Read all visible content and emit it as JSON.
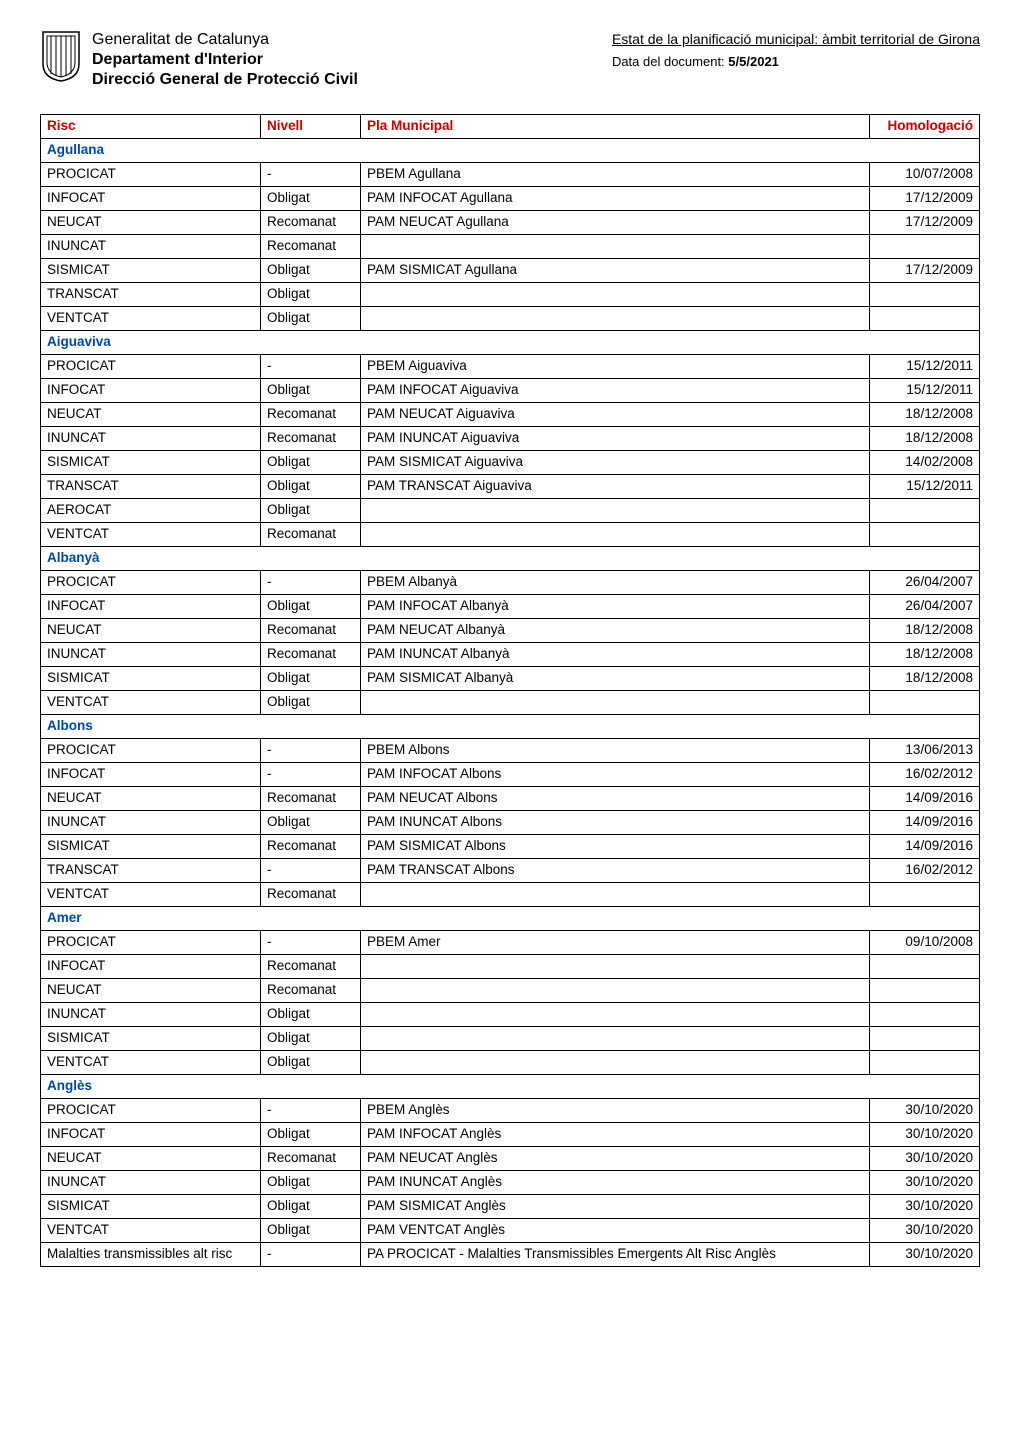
{
  "header": {
    "org_line1": "Generalitat de Catalunya",
    "org_line2": "Departament d'Interior",
    "org_line3": "Direcció General de Protecció Civil",
    "link_text": "Estat de la planificació municipal: àmbit territorial de Girona",
    "date_label": "Data del document: ",
    "date_value": "5/5/2021"
  },
  "colors": {
    "header_red": "#cc0000",
    "section_blue": "#0047ab",
    "border": "#000000",
    "background": "#ffffff",
    "text": "#000000"
  },
  "columns": [
    {
      "key": "risc",
      "label": "Risc"
    },
    {
      "key": "nivell",
      "label": "Nivell"
    },
    {
      "key": "pla",
      "label": "Pla Municipal"
    },
    {
      "key": "homolog",
      "label": "Homologació"
    }
  ],
  "sections": [
    {
      "name": "Agullana",
      "rows": [
        {
          "risc": "PROCICAT",
          "nivell": "-",
          "pla": "PBEM Agullana",
          "homolog": "10/07/2008"
        },
        {
          "risc": "INFOCAT",
          "nivell": "Obligat",
          "pla": "PAM INFOCAT Agullana",
          "homolog": "17/12/2009"
        },
        {
          "risc": "NEUCAT",
          "nivell": "Recomanat",
          "pla": "PAM NEUCAT Agullana",
          "homolog": "17/12/2009"
        },
        {
          "risc": "INUNCAT",
          "nivell": "Recomanat",
          "pla": "",
          "homolog": ""
        },
        {
          "risc": "SISMICAT",
          "nivell": "Obligat",
          "pla": "PAM SISMICAT Agullana",
          "homolog": "17/12/2009"
        },
        {
          "risc": "TRANSCAT",
          "nivell": "Obligat",
          "pla": "",
          "homolog": ""
        },
        {
          "risc": "VENTCAT",
          "nivell": "Obligat",
          "pla": "",
          "homolog": ""
        }
      ]
    },
    {
      "name": "Aiguaviva",
      "rows": [
        {
          "risc": "PROCICAT",
          "nivell": "-",
          "pla": "PBEM Aiguaviva",
          "homolog": "15/12/2011"
        },
        {
          "risc": "INFOCAT",
          "nivell": "Obligat",
          "pla": "PAM INFOCAT Aiguaviva",
          "homolog": "15/12/2011"
        },
        {
          "risc": "NEUCAT",
          "nivell": "Recomanat",
          "pla": "PAM NEUCAT Aiguaviva",
          "homolog": "18/12/2008"
        },
        {
          "risc": "INUNCAT",
          "nivell": "Recomanat",
          "pla": "PAM INUNCAT Aiguaviva",
          "homolog": "18/12/2008"
        },
        {
          "risc": "SISMICAT",
          "nivell": "Obligat",
          "pla": "PAM SISMICAT Aiguaviva",
          "homolog": "14/02/2008"
        },
        {
          "risc": "TRANSCAT",
          "nivell": "Obligat",
          "pla": "PAM TRANSCAT Aiguaviva",
          "homolog": "15/12/2011"
        },
        {
          "risc": "AEROCAT",
          "nivell": "Obligat",
          "pla": "",
          "homolog": ""
        },
        {
          "risc": "VENTCAT",
          "nivell": "Recomanat",
          "pla": "",
          "homolog": ""
        }
      ]
    },
    {
      "name": "Albanyà",
      "rows": [
        {
          "risc": "PROCICAT",
          "nivell": "-",
          "pla": "PBEM Albanyà",
          "homolog": "26/04/2007"
        },
        {
          "risc": "INFOCAT",
          "nivell": "Obligat",
          "pla": "PAM INFOCAT Albanyà",
          "homolog": "26/04/2007"
        },
        {
          "risc": "NEUCAT",
          "nivell": "Recomanat",
          "pla": "PAM NEUCAT Albanyà",
          "homolog": "18/12/2008"
        },
        {
          "risc": "INUNCAT",
          "nivell": "Recomanat",
          "pla": "PAM INUNCAT Albanyà",
          "homolog": "18/12/2008"
        },
        {
          "risc": "SISMICAT",
          "nivell": "Obligat",
          "pla": "PAM SISMICAT Albanyà",
          "homolog": "18/12/2008"
        },
        {
          "risc": "VENTCAT",
          "nivell": "Obligat",
          "pla": "",
          "homolog": ""
        }
      ]
    },
    {
      "name": "Albons",
      "rows": [
        {
          "risc": "PROCICAT",
          "nivell": "-",
          "pla": "PBEM Albons",
          "homolog": "13/06/2013"
        },
        {
          "risc": "INFOCAT",
          "nivell": "-",
          "pla": "PAM INFOCAT Albons",
          "homolog": "16/02/2012"
        },
        {
          "risc": "NEUCAT",
          "nivell": "Recomanat",
          "pla": "PAM NEUCAT Albons",
          "homolog": "14/09/2016"
        },
        {
          "risc": "INUNCAT",
          "nivell": "Obligat",
          "pla": "PAM INUNCAT Albons",
          "homolog": "14/09/2016"
        },
        {
          "risc": "SISMICAT",
          "nivell": "Recomanat",
          "pla": "PAM SISMICAT Albons",
          "homolog": "14/09/2016"
        },
        {
          "risc": "TRANSCAT",
          "nivell": "-",
          "pla": "PAM TRANSCAT Albons",
          "homolog": "16/02/2012"
        },
        {
          "risc": "VENTCAT",
          "nivell": "Recomanat",
          "pla": "",
          "homolog": ""
        }
      ]
    },
    {
      "name": "Amer",
      "rows": [
        {
          "risc": "PROCICAT",
          "nivell": "-",
          "pla": "PBEM Amer",
          "homolog": "09/10/2008"
        },
        {
          "risc": "INFOCAT",
          "nivell": "Recomanat",
          "pla": "",
          "homolog": ""
        },
        {
          "risc": "NEUCAT",
          "nivell": "Recomanat",
          "pla": "",
          "homolog": ""
        },
        {
          "risc": "INUNCAT",
          "nivell": "Obligat",
          "pla": "",
          "homolog": ""
        },
        {
          "risc": "SISMICAT",
          "nivell": "Obligat",
          "pla": "",
          "homolog": ""
        },
        {
          "risc": "VENTCAT",
          "nivell": "Obligat",
          "pla": "",
          "homolog": ""
        }
      ]
    },
    {
      "name": "Anglès",
      "rows": [
        {
          "risc": "PROCICAT",
          "nivell": "-",
          "pla": "PBEM Anglès",
          "homolog": "30/10/2020"
        },
        {
          "risc": "INFOCAT",
          "nivell": "Obligat",
          "pla": "PAM INFOCAT Anglès",
          "homolog": "30/10/2020"
        },
        {
          "risc": "NEUCAT",
          "nivell": "Recomanat",
          "pla": "PAM NEUCAT Anglès",
          "homolog": "30/10/2020"
        },
        {
          "risc": "INUNCAT",
          "nivell": "Obligat",
          "pla": "PAM INUNCAT Anglès",
          "homolog": "30/10/2020"
        },
        {
          "risc": "SISMICAT",
          "nivell": "Obligat",
          "pla": "PAM SISMICAT Anglès",
          "homolog": "30/10/2020"
        },
        {
          "risc": "VENTCAT",
          "nivell": "Obligat",
          "pla": "PAM VENTCAT Anglès",
          "homolog": "30/10/2020"
        },
        {
          "risc": "Malalties transmissibles alt risc",
          "nivell": "-",
          "pla": "PA PROCICAT - Malalties Transmissibles Emergents Alt Risc Anglès",
          "homolog": "30/10/2020"
        }
      ]
    }
  ]
}
